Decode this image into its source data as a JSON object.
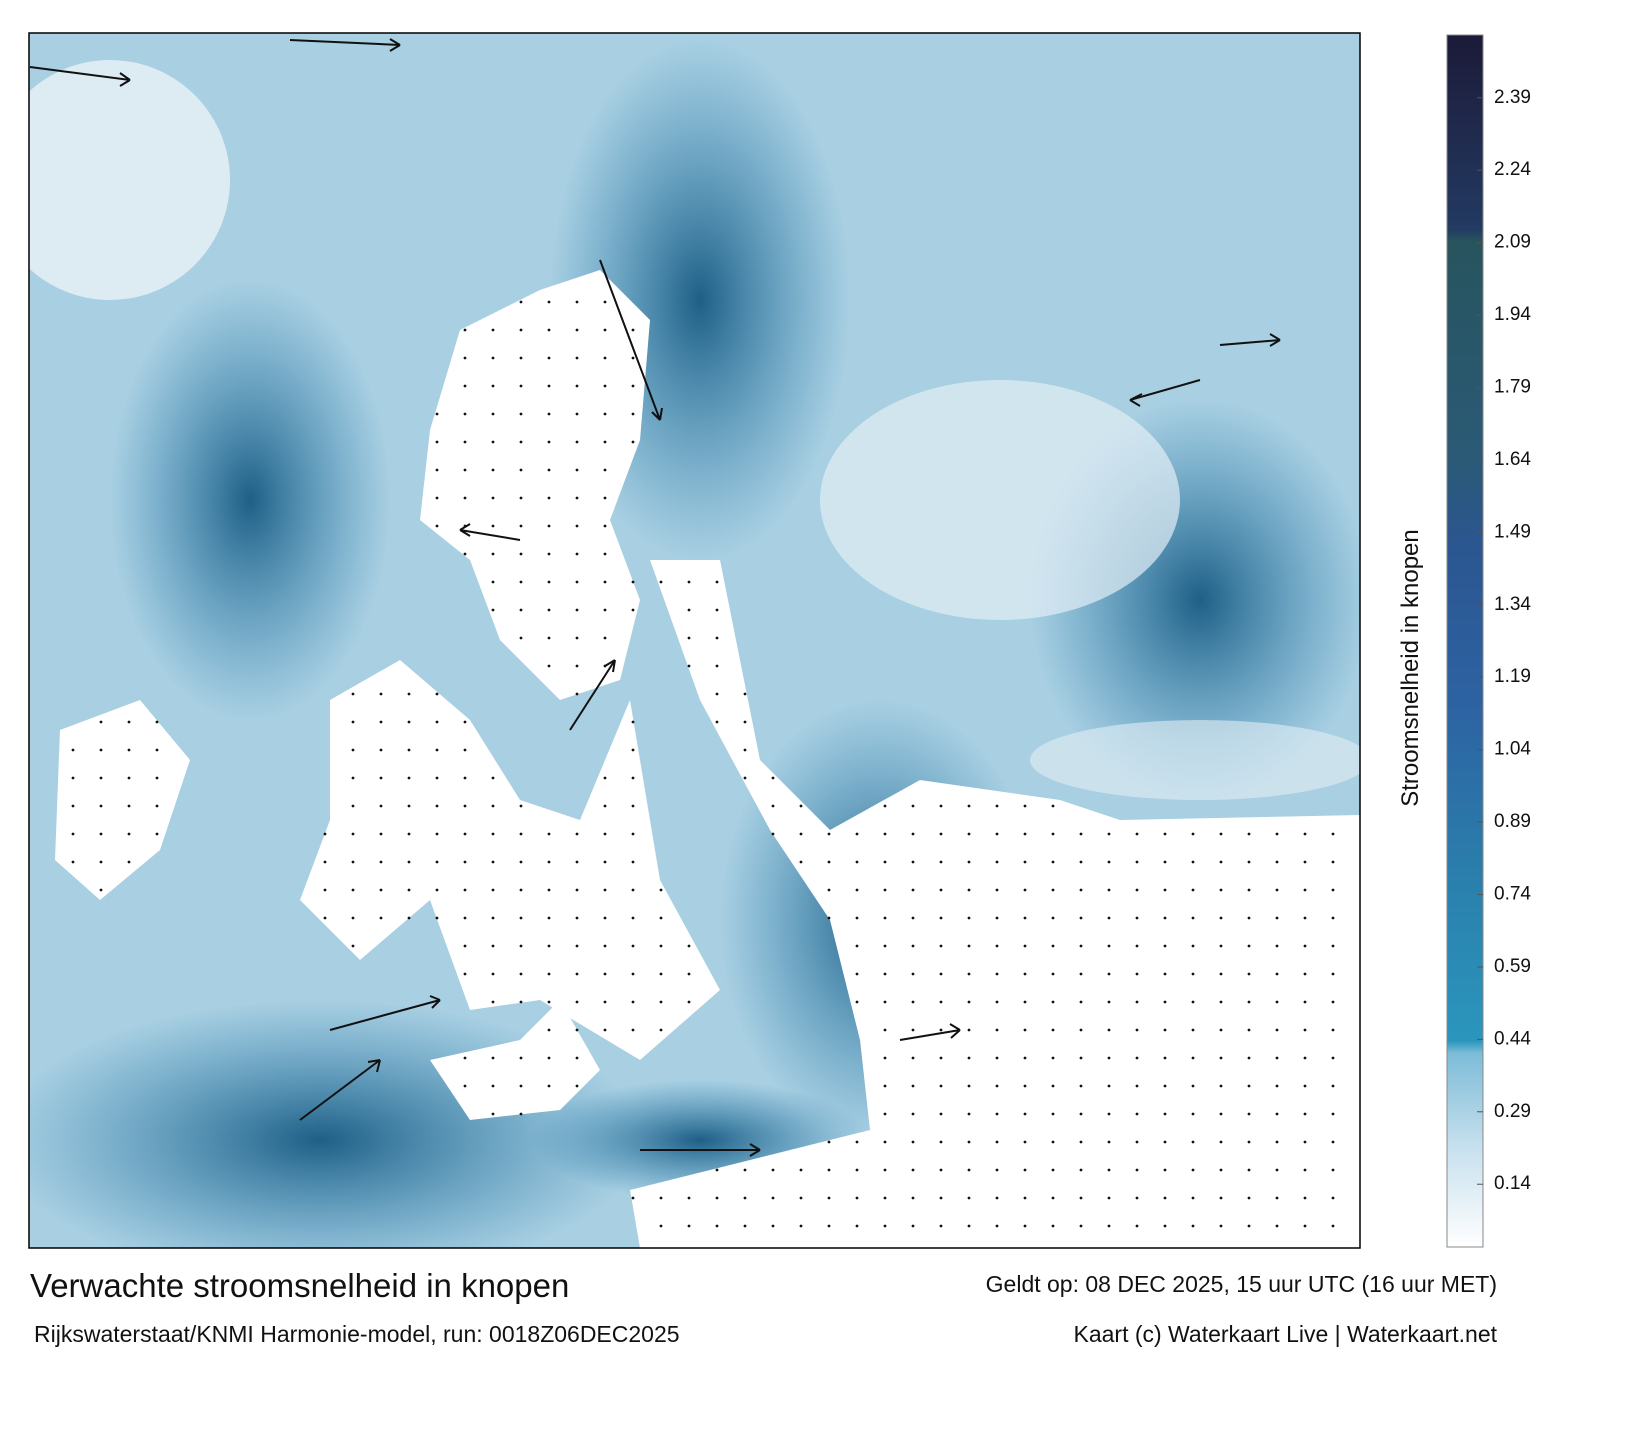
{
  "title": "Verwachte stroomsnelheid in knopen",
  "subtitle": "Rijkswaterstaat/KNMI Harmonie-model, run: 0018Z06DEC2025",
  "valid_time": "Geldt op: 08 DEC 2025, 15 uur UTC (16 uur MET)",
  "credit": "Kaart (c) Waterkaart Live | Waterkaart.net",
  "colorbar": {
    "label": "Stroomsnelheid in knopen",
    "lim": [
      0.01,
      2.52
    ],
    "ticks": [
      0.14,
      0.29,
      0.44,
      0.59,
      0.74,
      0.89,
      1.04,
      1.19,
      1.34,
      1.49,
      1.64,
      1.79,
      1.94,
      2.09,
      2.24,
      2.39
    ]
  }
}
